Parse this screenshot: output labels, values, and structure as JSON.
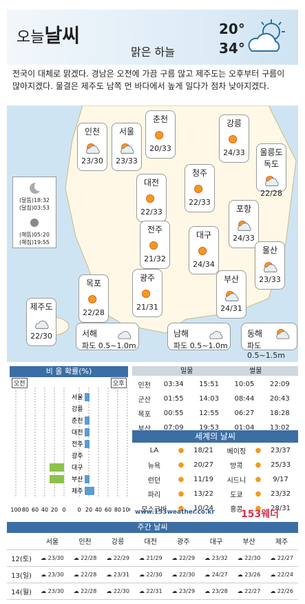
{
  "header": {
    "today": "오늘",
    "weather": "날씨",
    "sky": "맑은 하늘",
    "low": "20°",
    "high": "34°"
  },
  "description": "전국이 대체로 맑겠다. 경남은 오전에 가끔 구름 많고 제주도는 오후부터 구름이 많아지겠다. 물결은 제주도 남쪽 먼 바다에서 높게 일다가 점차 낮아지겠다.",
  "cities": [
    {
      "name": "인천",
      "temp": "23/30",
      "icon": "sun-cloud"
    },
    {
      "name": "서울",
      "temp": "23/33",
      "icon": "sun-cloud"
    },
    {
      "name": "춘천",
      "temp": "20/33",
      "icon": "sun"
    },
    {
      "name": "강릉",
      "temp": "24/33",
      "icon": "sun"
    },
    {
      "name": "울릉도\n독도",
      "temp": "22/28",
      "icon": "sun-cloud"
    },
    {
      "name": "대전",
      "temp": "22/33",
      "icon": "sun"
    },
    {
      "name": "청주",
      "temp": "22/33",
      "icon": "sun"
    },
    {
      "name": "포항",
      "temp": "24/33",
      "icon": "sun-cloud"
    },
    {
      "name": "전주",
      "temp": "21/32",
      "icon": "sun"
    },
    {
      "name": "대구",
      "temp": "24/34",
      "icon": "sun"
    },
    {
      "name": "울산",
      "temp": "23/33",
      "icon": "sun-cloud"
    },
    {
      "name": "목포",
      "temp": "22/28",
      "icon": "sun"
    },
    {
      "name": "광주",
      "temp": "21/31",
      "icon": "sun"
    },
    {
      "name": "부산",
      "temp": "24/31",
      "icon": "sun-cloud"
    },
    {
      "name": "제주도",
      "temp": "22/30",
      "icon": "cloud"
    }
  ],
  "seas": [
    {
      "name": "서해",
      "wave": "파도 0.5~1.0m"
    },
    {
      "name": "남해",
      "wave": "파도 0.5~1.0m"
    },
    {
      "name": "동해",
      "wave": "파도 0.5~1.5m"
    }
  ],
  "astro": {
    "moonrise": "(달뜸)18:32",
    "moonset": "(달짐)03:53",
    "sunrise": "(해뜸)05:20",
    "sunset": "(해짐)19:55"
  },
  "rain": {
    "title": "비 올 확률(%)",
    "am": "오전",
    "pm": "오후",
    "axis": [
      "100",
      "80",
      "60",
      "40",
      "20",
      "0",
      "0",
      "20",
      "40",
      "60",
      "80",
      "100"
    ],
    "cities": [
      "서울",
      "강릉",
      "춘천",
      "대전",
      "전주",
      "광주",
      "대구",
      "부산",
      "제주"
    ],
    "am_values": [
      0,
      0,
      0,
      0,
      0,
      0,
      30,
      30,
      0
    ],
    "pm_values": [
      10,
      0,
      10,
      10,
      10,
      0,
      0,
      10,
      20
    ]
  },
  "tide": {
    "headers": [
      "밀물",
      "썰물"
    ],
    "rows": [
      {
        "place": "인천",
        "v": [
          "03:34",
          "15:51",
          "10:05",
          "22:09"
        ]
      },
      {
        "place": "군산",
        "v": [
          "01:55",
          "14:03",
          "08:44",
          "20:43"
        ]
      },
      {
        "place": "목포",
        "v": [
          "00:55",
          "12:55",
          "06:27",
          "18:28"
        ]
      },
      {
        "place": "부산",
        "v": [
          "07:09",
          "19:53",
          "01:04",
          "13:02"
        ]
      }
    ]
  },
  "world": {
    "title": "세계의 날씨",
    "rows": [
      {
        "a": "LA",
        "at": "18/21",
        "b": "베이징",
        "bt": "23/37"
      },
      {
        "a": "뉴욕",
        "at": "20/27",
        "b": "방콕",
        "bt": "25/33"
      },
      {
        "a": "런던",
        "at": "11/19",
        "b": "시드니",
        "bt": "9/17"
      },
      {
        "a": "파리",
        "at": "13/22",
        "b": "도쿄",
        "bt": "23/32"
      },
      {
        "a": "모스크바",
        "at": "10/24",
        "b": "홍콩",
        "bt": "28/31"
      }
    ]
  },
  "footer": {
    "url": "www.153weather.co.kr",
    "brand": "153웨더"
  },
  "weekly": {
    "title": "주간 날씨",
    "cols": [
      "서울",
      "인천",
      "강릉",
      "대전",
      "광주",
      "대구",
      "부산",
      "제주"
    ],
    "rows": [
      {
        "day": "12(토)",
        "t": [
          "23/30",
          "22/28",
          "22/29",
          "21/29",
          "22/29",
          "23/32",
          "22/30",
          "22/27"
        ]
      },
      {
        "day": "13(일)",
        "t": [
          "23/30",
          "22/28",
          "23/31",
          "22/30",
          "22/30",
          "24/27",
          "23/26",
          "22/24"
        ]
      },
      {
        "day": "14(월)",
        "t": [
          "23/30",
          "22/28",
          "22/30",
          "22/31",
          "23/29",
          "23/28",
          "22/27",
          "22/26"
        ]
      }
    ]
  }
}
